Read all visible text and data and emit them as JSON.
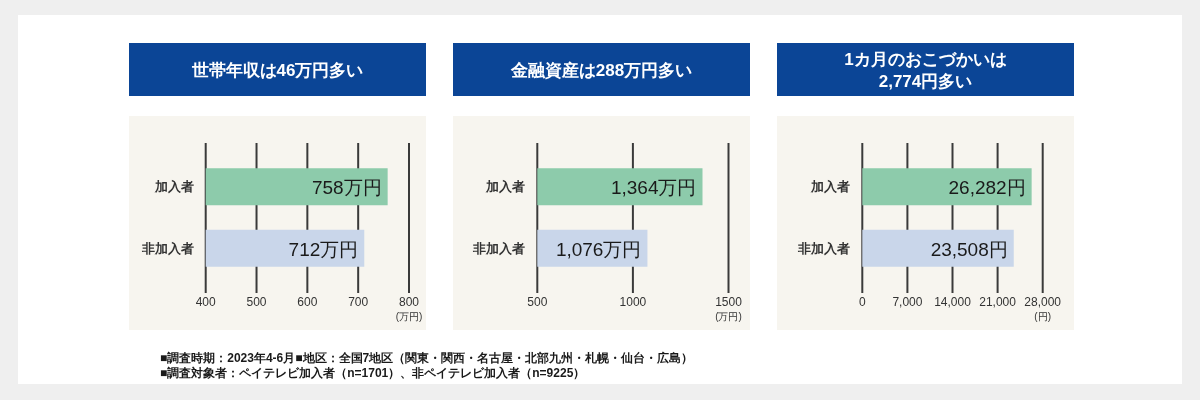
{
  "chart_data": [
    {
      "type": "bar",
      "orientation": "horizontal",
      "title": "世帯年収は46万円多い",
      "categories": [
        "加入者",
        "非加入者"
      ],
      "values": [
        758,
        712
      ],
      "colors": [
        "#8dcbab",
        "#c9d6ea"
      ],
      "value_labels": [
        "758万円",
        "712万円"
      ],
      "xlim": [
        400,
        800
      ],
      "xticks": [
        400,
        500,
        600,
        700,
        800
      ],
      "xlabel": "(万円)",
      "grid": "x",
      "annotations": [
        "■調査時期：2023年4-6月■地区：全国7地区（関東・関西・名古屋・北部九州・札幌・仙台・広島）",
        "■調査対象者：ペイテレビ加入者（n=1701）、非ペイテレビ加入者（n=9225）"
      ]
    },
    {
      "type": "bar",
      "orientation": "horizontal",
      "title": "金融資産は288万円多い",
      "categories": [
        "加入者",
        "非加入者"
      ],
      "values": [
        1364,
        1076
      ],
      "colors": [
        "#8dcbab",
        "#c9d6ea"
      ],
      "value_labels": [
        "1,364万円",
        "1,076万円"
      ],
      "xlim": [
        500,
        1500
      ],
      "xticks": [
        500,
        1000,
        1500
      ],
      "xlabel": "(万円)",
      "grid": "x"
    },
    {
      "type": "bar",
      "orientation": "horizontal",
      "title": "1カ月のおこづかいは\n2,774円多い",
      "categories": [
        "加入者",
        "非加入者"
      ],
      "values": [
        26282,
        23508
      ],
      "colors": [
        "#8dcbab",
        "#c9d6ea"
      ],
      "value_labels": [
        "26,282円",
        "23,508円"
      ],
      "xlim": [
        0,
        28000
      ],
      "xticks": [
        0,
        {
          "value": 7000,
          "label": "7,000"
        },
        {
          "value": 14000,
          "label": "14,000"
        },
        {
          "value": 21000,
          "label": "21,000"
        },
        {
          "value": 28000,
          "label": "28,000"
        }
      ],
      "xlabel": "(円)",
      "grid": "x"
    }
  ]
}
